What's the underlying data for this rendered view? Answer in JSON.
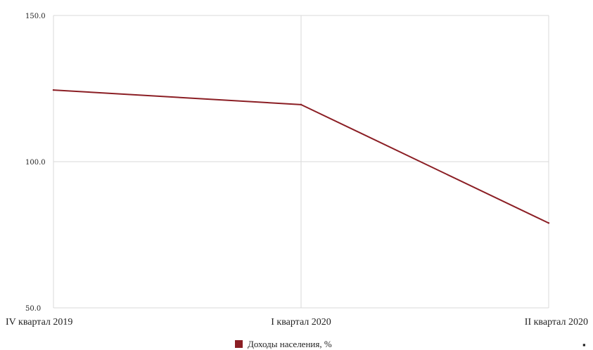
{
  "chart_data": {
    "type": "line",
    "title": "",
    "xlabel": "",
    "ylabel": "",
    "categories": [
      "IV квартал 2019",
      "I квартал 2020",
      "II квартал 2020"
    ],
    "y_ticks": [
      "50.0",
      "100.0",
      "150.0"
    ],
    "ylim": [
      50,
      150
    ],
    "grid": true,
    "legend_position": "bottom-center",
    "series": [
      {
        "name": "Доходы населения, %",
        "values": [
          124.5,
          119.5,
          79.0
        ],
        "color": "#8b1e24"
      }
    ],
    "corner_mark": "▪"
  }
}
